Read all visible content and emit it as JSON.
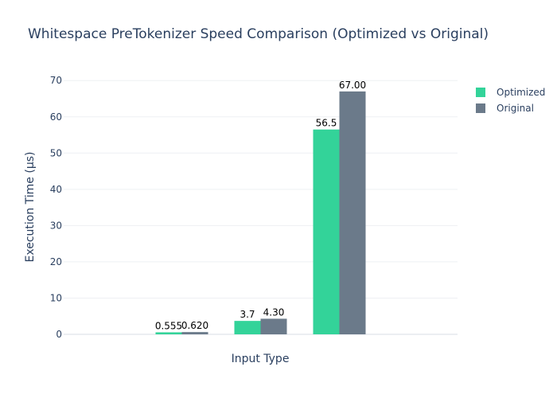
{
  "chart_data": {
    "type": "bar",
    "title": "Whitespace PreTokenizer Speed Comparison (Optimized vs Original)",
    "xlabel": "Input Type",
    "ylabel": "Execution Time (μs)",
    "ylim": [
      0,
      70
    ],
    "y_ticks": [
      "0",
      "10",
      "20",
      "30",
      "40",
      "50",
      "60",
      "70"
    ],
    "categories": [
      "",
      "",
      "",
      "",
      ""
    ],
    "series": [
      {
        "name": "Optimized",
        "color": "#33d399",
        "values": [
          null,
          0.555,
          3.7,
          56.5,
          null
        ],
        "labels": [
          "",
          "0.555",
          "3.7",
          "56.5",
          ""
        ]
      },
      {
        "name": "Original",
        "color": "#6b7a8a",
        "values": [
          null,
          0.62,
          4.3,
          67.0,
          null
        ],
        "labels": [
          "",
          "0.620",
          "4.30",
          "67.00",
          ""
        ]
      }
    ],
    "grid": true,
    "legend_position": "top-right"
  }
}
